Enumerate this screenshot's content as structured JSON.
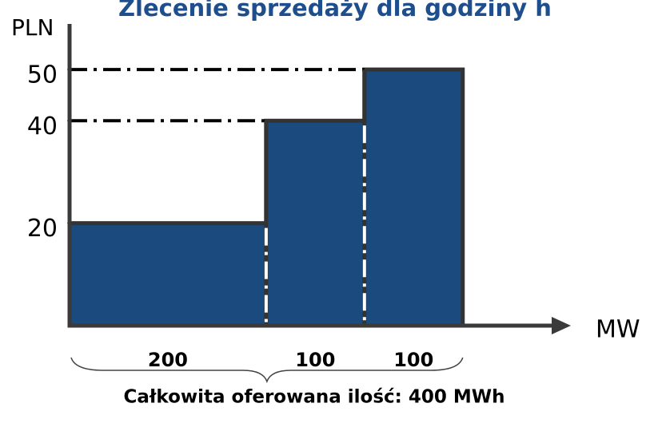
{
  "chart_data": {
    "type": "bar",
    "title": "Zlecenie sprzedaży dla godziny h",
    "y_label": "PLN",
    "x_label": "MW",
    "values": [
      20,
      40,
      50
    ],
    "widths": [
      200,
      100,
      100
    ],
    "color": "#1a4a7e",
    "ylim": [
      0,
      55
    ],
    "yticks": [
      20,
      40,
      50
    ],
    "xlim": [
      0,
      510
    ],
    "annotation": "Całkowita oferowana ilość: 400 MWh"
  }
}
